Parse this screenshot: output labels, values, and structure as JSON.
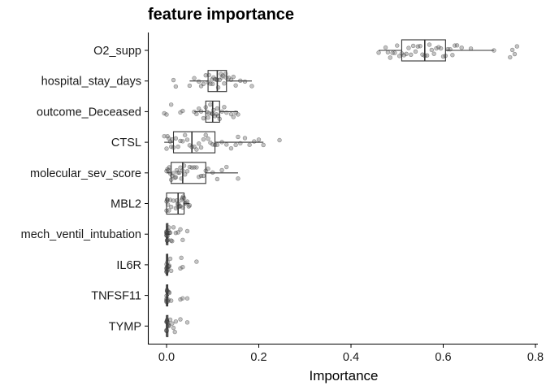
{
  "chart_data": {
    "type": "boxplot",
    "title": "feature importance",
    "xlabel": "Importance",
    "ylabel": "",
    "xlim": [
      -0.04,
      0.81
    ],
    "xticks": [
      0.0,
      0.2,
      0.4,
      0.6,
      0.8
    ],
    "xtick_labels": [
      "0.0",
      "0.2",
      "0.4",
      "0.6",
      "0.8"
    ],
    "grid": false,
    "legend": "none",
    "colors": {
      "box": "#333333",
      "points": "#555555"
    },
    "categories": [
      "O2_supp",
      "hospital_stay_days",
      "outcome_Deceased",
      "CTSL",
      "molecular_sev_score",
      "MBL2",
      "mech_ventil_intubation",
      "IL6R",
      "TNFSF11",
      "TYMP"
    ],
    "boxes": [
      {
        "name": "O2_supp",
        "whisker_low": 0.46,
        "q1": 0.51,
        "median": 0.56,
        "q3": 0.605,
        "whisker_high": 0.71,
        "points": [
          0.46,
          0.475,
          0.48,
          0.485,
          0.49,
          0.495,
          0.5,
          0.505,
          0.51,
          0.515,
          0.52,
          0.525,
          0.53,
          0.535,
          0.54,
          0.545,
          0.55,
          0.555,
          0.56,
          0.565,
          0.57,
          0.575,
          0.58,
          0.585,
          0.59,
          0.595,
          0.6,
          0.605,
          0.61,
          0.615,
          0.62,
          0.625,
          0.63,
          0.64,
          0.66,
          0.71,
          0.745,
          0.75,
          0.755,
          0.76
        ]
      },
      {
        "name": "hospital_stay_days",
        "whisker_low": 0.05,
        "q1": 0.09,
        "median": 0.11,
        "q3": 0.13,
        "whisker_high": 0.185,
        "points": [
          0.015,
          0.02,
          0.05,
          0.06,
          0.07,
          0.075,
          0.08,
          0.085,
          0.09,
          0.092,
          0.095,
          0.098,
          0.1,
          0.102,
          0.105,
          0.108,
          0.11,
          0.112,
          0.115,
          0.118,
          0.12,
          0.122,
          0.125,
          0.128,
          0.13,
          0.135,
          0.14,
          0.145,
          0.15,
          0.16,
          0.17,
          0.185
        ]
      },
      {
        "name": "outcome_Deceased",
        "whisker_low": 0.06,
        "q1": 0.085,
        "median": 0.1,
        "q3": 0.115,
        "whisker_high": 0.155,
        "points": [
          -0.005,
          0.0,
          0.01,
          0.03,
          0.035,
          0.06,
          0.065,
          0.07,
          0.075,
          0.08,
          0.085,
          0.088,
          0.09,
          0.092,
          0.095,
          0.098,
          0.1,
          0.102,
          0.105,
          0.108,
          0.11,
          0.112,
          0.115,
          0.12,
          0.125,
          0.13,
          0.14,
          0.145,
          0.15,
          0.155
        ]
      },
      {
        "name": "CTSL",
        "whisker_low": -0.005,
        "q1": 0.015,
        "median": 0.055,
        "q3": 0.105,
        "whisker_high": 0.21,
        "points": [
          -0.005,
          0.0,
          0.002,
          0.005,
          0.008,
          0.01,
          0.012,
          0.015,
          0.02,
          0.025,
          0.03,
          0.035,
          0.04,
          0.045,
          0.05,
          0.055,
          0.06,
          0.065,
          0.07,
          0.075,
          0.08,
          0.085,
          0.09,
          0.095,
          0.1,
          0.105,
          0.11,
          0.12,
          0.13,
          0.14,
          0.15,
          0.155,
          0.16,
          0.17,
          0.18,
          0.19,
          0.2,
          0.21,
          0.245
        ]
      },
      {
        "name": "molecular_sev_score",
        "whisker_low": 0.0,
        "q1": 0.01,
        "median": 0.035,
        "q3": 0.085,
        "whisker_high": 0.155,
        "points": [
          0.0,
          0.002,
          0.004,
          0.006,
          0.008,
          0.01,
          0.012,
          0.015,
          0.018,
          0.02,
          0.022,
          0.025,
          0.028,
          0.03,
          0.032,
          0.035,
          0.038,
          0.04,
          0.045,
          0.05,
          0.055,
          0.06,
          0.065,
          0.07,
          0.075,
          0.08,
          0.085,
          0.09,
          0.1,
          0.11,
          0.12,
          0.13,
          0.155
        ]
      },
      {
        "name": "MBL2",
        "whisker_low": 0.0,
        "q1": 0.0,
        "median": 0.025,
        "q3": 0.038,
        "whisker_high": 0.05,
        "points": [
          0.0,
          0.0,
          0.001,
          0.002,
          0.003,
          0.005,
          0.008,
          0.01,
          0.015,
          0.02,
          0.022,
          0.024,
          0.025,
          0.026,
          0.028,
          0.03,
          0.032,
          0.034,
          0.035,
          0.036,
          0.038,
          0.04,
          0.042,
          0.045,
          0.048,
          0.05
        ]
      },
      {
        "name": "mech_ventil_intubation",
        "whisker_low": 0.0,
        "q1": 0.0,
        "median": 0.0,
        "q3": 0.003,
        "whisker_high": 0.008,
        "points": [
          0.0,
          0.0,
          0.0,
          0.0,
          0.0,
          0.0,
          0.001,
          0.001,
          0.002,
          0.002,
          0.003,
          0.004,
          0.005,
          0.006,
          0.008,
          0.01,
          0.012,
          0.015,
          0.02,
          0.025,
          0.03,
          0.035,
          0.045
        ]
      },
      {
        "name": "IL6R",
        "whisker_low": 0.0,
        "q1": 0.0,
        "median": 0.0,
        "q3": 0.002,
        "whisker_high": 0.005,
        "points": [
          0.0,
          0.0,
          0.0,
          0.0,
          0.0,
          0.001,
          0.001,
          0.002,
          0.003,
          0.004,
          0.005,
          0.006,
          0.008,
          0.01,
          0.03,
          0.032,
          0.035,
          0.065
        ]
      },
      {
        "name": "TNFSF11",
        "whisker_low": 0.0,
        "q1": 0.0,
        "median": 0.0,
        "q3": 0.002,
        "whisker_high": 0.005,
        "points": [
          0.0,
          0.0,
          0.0,
          0.0,
          0.0,
          0.001,
          0.001,
          0.002,
          0.003,
          0.004,
          0.005,
          0.006,
          0.01,
          0.03,
          0.035,
          0.045
        ]
      },
      {
        "name": "TYMP",
        "whisker_low": 0.0,
        "q1": 0.0,
        "median": 0.0,
        "q3": 0.003,
        "whisker_high": 0.006,
        "points": [
          0.0,
          0.0,
          0.0,
          0.0,
          0.0,
          0.001,
          0.001,
          0.002,
          0.003,
          0.004,
          0.005,
          0.008,
          0.012,
          0.015,
          0.018,
          0.02,
          0.03,
          0.045
        ]
      }
    ]
  }
}
